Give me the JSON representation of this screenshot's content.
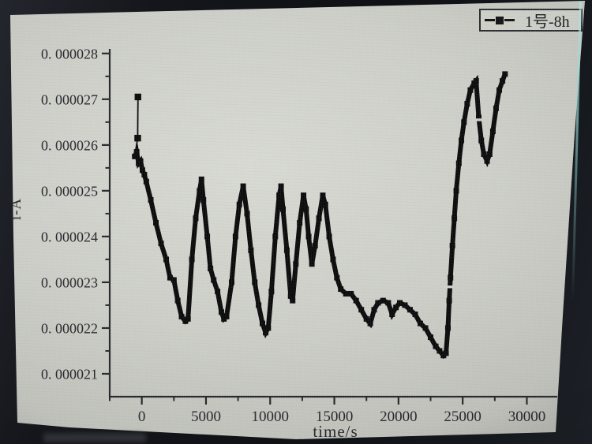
{
  "legend": {
    "position": "top-right",
    "entries": [
      {
        "symbol": "line-filled-square-line",
        "label": "1号-8h"
      }
    ]
  },
  "colors": {
    "screen_bg": "#cfd0ca",
    "bezel": "#14161b",
    "axis": "#26272b",
    "text": "#26262a",
    "series": "#0b0b0c",
    "edge_highlight": "#8fcfcb"
  },
  "chart_data": {
    "type": "line",
    "title": "",
    "xlabel": "time/s",
    "ylabel": "i-A",
    "xlim": [
      -2500,
      32000
    ],
    "ylim": [
      2.05e-05,
      2.81e-05
    ],
    "grid": false,
    "legend_position": "top-right",
    "x_ticks": {
      "major_values": [
        0,
        5000,
        10000,
        15000,
        20000,
        25000,
        30000
      ],
      "major_labels": [
        "0",
        "5000",
        "10000",
        "15000",
        "20000",
        "25000",
        "30000"
      ],
      "minor_values": [
        -2500,
        2500,
        7500,
        12500,
        17500,
        22500,
        27500,
        32500
      ]
    },
    "y_ticks": {
      "major_values": [
        2.1e-05,
        2.2e-05,
        2.3e-05,
        2.4e-05,
        2.5e-05,
        2.6e-05,
        2.7e-05,
        2.8e-05
      ],
      "major_labels": [
        "0. 000021",
        "0. 000022",
        "0. 000023",
        "0. 000024",
        "0. 000025",
        "0. 000026",
        "0. 000027",
        "0. 000028"
      ],
      "minor_values": [
        2.15e-05,
        2.25e-05,
        2.35e-05,
        2.45e-05,
        2.55e-05,
        2.65e-05,
        2.75e-05
      ]
    },
    "series": [
      {
        "name": "1号-8h",
        "color": "#0b0b0c",
        "marker": "filled-square",
        "lead_in_points": [
          [
            -300,
            2.705e-05
          ],
          [
            -320,
            2.615e-05
          ]
        ],
        "points": [
          [
            -550,
            2.575e-05
          ],
          [
            -400,
            2.585e-05
          ],
          [
            -250,
            2.56e-05
          ],
          [
            -100,
            2.565e-05
          ],
          [
            50,
            2.545e-05
          ],
          [
            200,
            2.535e-05
          ],
          [
            350,
            2.52e-05
          ],
          [
            700,
            2.48e-05
          ],
          [
            1100,
            2.43e-05
          ],
          [
            1500,
            2.385e-05
          ],
          [
            1900,
            2.35e-05
          ],
          [
            2200,
            2.31e-05
          ],
          [
            2500,
            2.305e-05
          ],
          [
            2800,
            2.26e-05
          ],
          [
            3100,
            2.225e-05
          ],
          [
            3400,
            2.215e-05
          ],
          [
            3600,
            2.22e-05
          ],
          [
            3900,
            2.35e-05
          ],
          [
            4200,
            2.44e-05
          ],
          [
            4500,
            2.5e-05
          ],
          [
            4650,
            2.525e-05
          ],
          [
            4800,
            2.48e-05
          ],
          [
            5100,
            2.4e-05
          ],
          [
            5350,
            2.33e-05
          ],
          [
            5600,
            2.305e-05
          ],
          [
            5900,
            2.28e-05
          ],
          [
            6200,
            2.235e-05
          ],
          [
            6400,
            2.22e-05
          ],
          [
            6600,
            2.225e-05
          ],
          [
            7000,
            2.3e-05
          ],
          [
            7300,
            2.4e-05
          ],
          [
            7600,
            2.47e-05
          ],
          [
            7900,
            2.51e-05
          ],
          [
            8200,
            2.45e-05
          ],
          [
            8500,
            2.37e-05
          ],
          [
            8800,
            2.3e-05
          ],
          [
            9100,
            2.25e-05
          ],
          [
            9400,
            2.21e-05
          ],
          [
            9650,
            2.19e-05
          ],
          [
            9850,
            2.2e-05
          ],
          [
            10100,
            2.28e-05
          ],
          [
            10400,
            2.4e-05
          ],
          [
            10700,
            2.49e-05
          ],
          [
            10850,
            2.51e-05
          ],
          [
            11000,
            2.46e-05
          ],
          [
            11300,
            2.37e-05
          ],
          [
            11600,
            2.27e-05
          ],
          [
            11750,
            2.26e-05
          ],
          [
            12000,
            2.34e-05
          ],
          [
            12300,
            2.43e-05
          ],
          [
            12600,
            2.49e-05
          ],
          [
            12800,
            2.46e-05
          ],
          [
            13000,
            2.4e-05
          ],
          [
            13250,
            2.34e-05
          ],
          [
            13500,
            2.38e-05
          ],
          [
            13800,
            2.44e-05
          ],
          [
            14100,
            2.49e-05
          ],
          [
            14300,
            2.47e-05
          ],
          [
            14600,
            2.4e-05
          ],
          [
            14900,
            2.35e-05
          ],
          [
            15200,
            2.31e-05
          ],
          [
            15500,
            2.285e-05
          ],
          [
            15900,
            2.275e-05
          ],
          [
            16300,
            2.275e-05
          ],
          [
            16700,
            2.26e-05
          ],
          [
            17100,
            2.24e-05
          ],
          [
            17500,
            2.22e-05
          ],
          [
            17800,
            2.21e-05
          ],
          [
            18100,
            2.24e-05
          ],
          [
            18400,
            2.255e-05
          ],
          [
            18800,
            2.26e-05
          ],
          [
            19200,
            2.255e-05
          ],
          [
            19500,
            2.23e-05
          ],
          [
            19800,
            2.245e-05
          ],
          [
            20100,
            2.255e-05
          ],
          [
            20500,
            2.25e-05
          ],
          [
            20900,
            2.24e-05
          ],
          [
            21300,
            2.23e-05
          ],
          [
            21700,
            2.21e-05
          ],
          [
            22100,
            2.2e-05
          ],
          [
            22500,
            2.18e-05
          ],
          [
            22900,
            2.16e-05
          ],
          [
            23200,
            2.15e-05
          ],
          [
            23500,
            2.14e-05
          ],
          [
            23700,
            2.145e-05
          ],
          [
            23850,
            2.2e-05
          ],
          [
            23950,
            2.26e-05
          ],
          [
            24050,
            2.31e-05
          ],
          [
            24200,
            2.38e-05
          ],
          [
            24350,
            2.44e-05
          ],
          [
            24500,
            2.5e-05
          ],
          [
            24700,
            2.56e-05
          ],
          [
            24900,
            2.61e-05
          ],
          [
            25100,
            2.65e-05
          ],
          [
            25350,
            2.69e-05
          ],
          [
            25600,
            2.72e-05
          ],
          [
            25900,
            2.735e-05
          ],
          [
            26050,
            2.74e-05
          ],
          [
            26250,
            2.66e-05
          ],
          [
            26450,
            2.61e-05
          ],
          [
            26650,
            2.58e-05
          ],
          [
            26900,
            2.565e-05
          ],
          [
            27100,
            2.58e-05
          ],
          [
            27350,
            2.63e-05
          ],
          [
            27600,
            2.68e-05
          ],
          [
            27850,
            2.72e-05
          ],
          [
            28100,
            2.74e-05
          ],
          [
            28300,
            2.755e-05
          ]
        ]
      }
    ],
    "line_gaps": [
      [
        23900,
        2.29e-05
      ],
      [
        26270,
        2.655e-05
      ]
    ]
  }
}
